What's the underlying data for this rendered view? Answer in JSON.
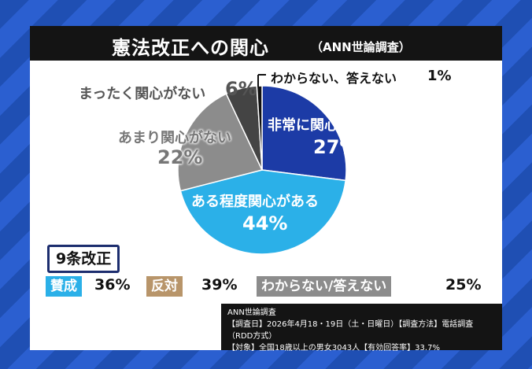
{
  "title": "憲法改正への関心",
  "subtitle": "（ANN世論調査）",
  "chart_data": [
    {
      "type": "pie",
      "title": "憲法改正への関心",
      "slices": [
        {
          "label": "非常に関心がある",
          "value": 27,
          "value_text": "27%",
          "color": "#1c3ba6"
        },
        {
          "label": "ある程度関心がある",
          "value": 44,
          "value_text": "44%",
          "color": "#2bb0e8"
        },
        {
          "label": "あまり関心がない",
          "value": 22,
          "value_text": "22%",
          "color": "#8c8c8c"
        },
        {
          "label": "まったく関心がない",
          "value": 6,
          "value_text": "6%",
          "color": "#444444"
        },
        {
          "label": "わからない、答えない",
          "value": 1,
          "value_text": "1%",
          "color": "#111111"
        }
      ]
    },
    {
      "type": "table",
      "title": "9条改正",
      "items": [
        {
          "label": "賛成",
          "value": 36,
          "value_text": "36%",
          "color": "#2bb0e8"
        },
        {
          "label": "反対",
          "value": 39,
          "value_text": "39%",
          "color": "#b8956a"
        },
        {
          "label": "わからない/答えない",
          "value": 25,
          "value_text": "25%",
          "color": "#8c8c8c"
        }
      ]
    }
  ],
  "source": {
    "line1": "ANN世論調査",
    "line2": "【調査日】2026年4月18・19日（土・日曜日）【調査方法】電話調査（RDD方式）",
    "line3": "【対象】全国18歳以上の男女3043人【有効回答率】33.7%"
  }
}
